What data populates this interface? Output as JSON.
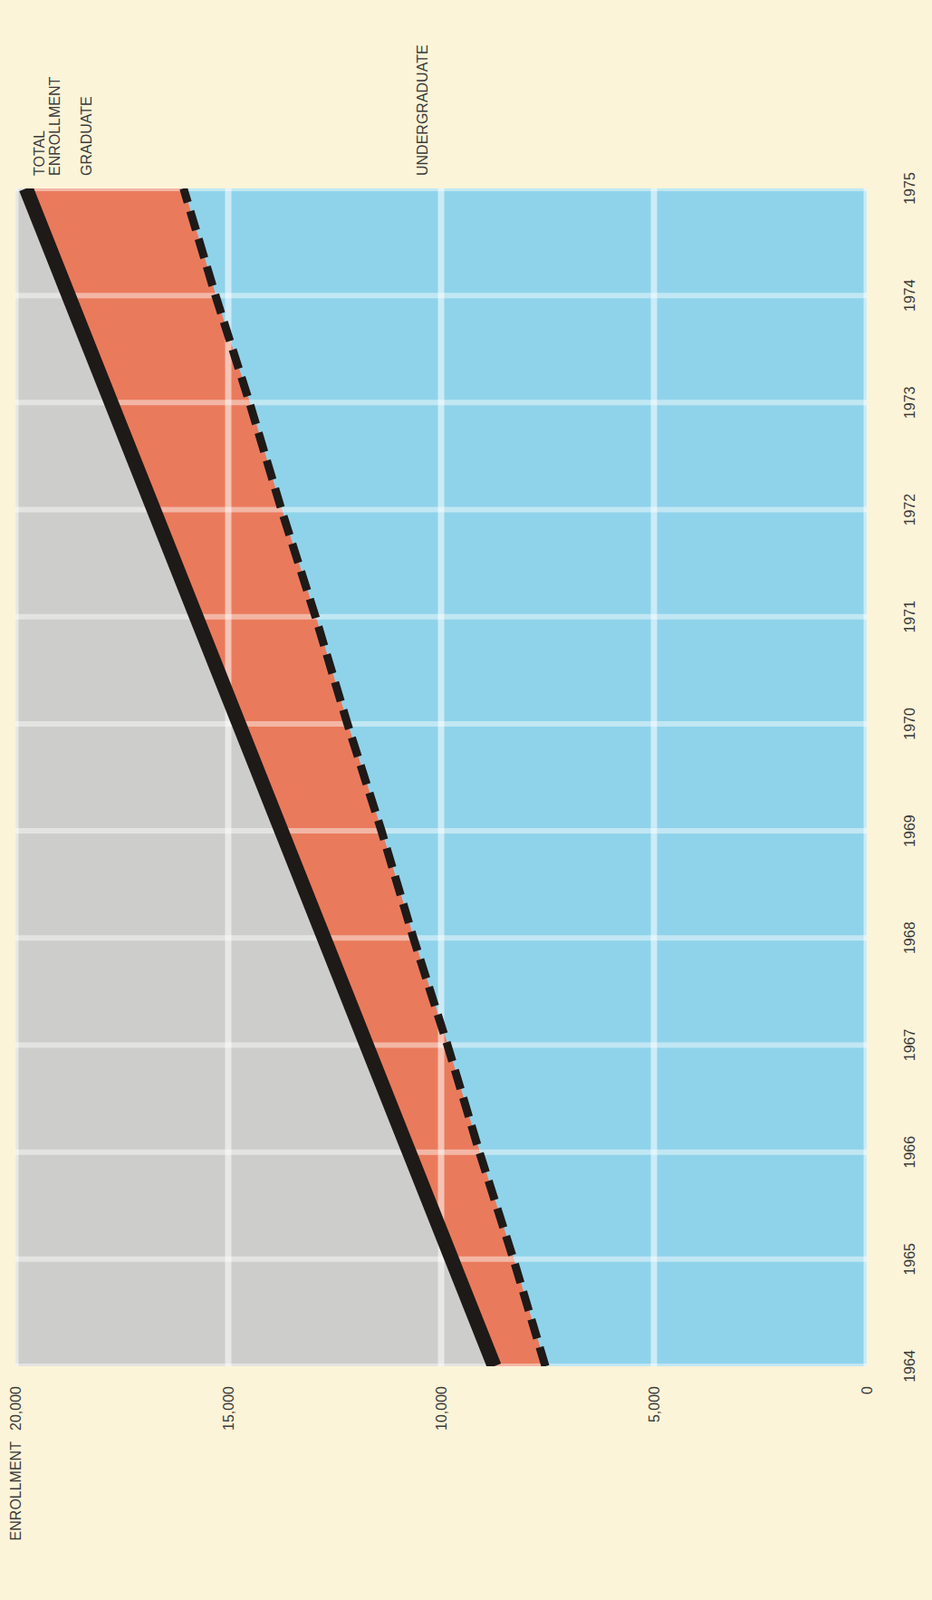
{
  "chart_data": {
    "type": "area",
    "stacked": true,
    "grid": true,
    "y_label": "ENROLLMENT",
    "x": [
      1964,
      1965,
      1966,
      1967,
      1968,
      1969,
      1970,
      1971,
      1972,
      1973,
      1974,
      1975
    ],
    "xlim": [
      1964,
      1975
    ],
    "xticks": [
      1964,
      1965,
      1966,
      1967,
      1968,
      1969,
      1970,
      1971,
      1972,
      1973,
      1974,
      1975
    ],
    "ylim": [
      0,
      20000
    ],
    "yticks": [
      0,
      {
        "value": 5000,
        "label": "5,000"
      },
      {
        "value": 10000,
        "label": "10,000"
      },
      {
        "value": 15000,
        "label": "15,000"
      },
      {
        "value": 20000,
        "label": "20,000"
      }
    ],
    "series": [
      {
        "name": "UNDERGRADUATE",
        "color": "#8fd3ea",
        "line_style": "dashed",
        "values": [
          7550,
          8300,
          9100,
          9850,
          10650,
          11400,
          12200,
          12950,
          13750,
          14500,
          15300,
          16050
        ]
      },
      {
        "name": "GRADUATE",
        "color": "#ea7a5c",
        "line_style": "solid",
        "values": [
          1200,
          1450,
          1650,
          1900,
          2100,
          2350,
          2550,
          2800,
          3000,
          3250,
          3450,
          3700
        ]
      }
    ],
    "annotations": [
      {
        "text": "TOTAL ENROLLMENT"
      }
    ]
  }
}
